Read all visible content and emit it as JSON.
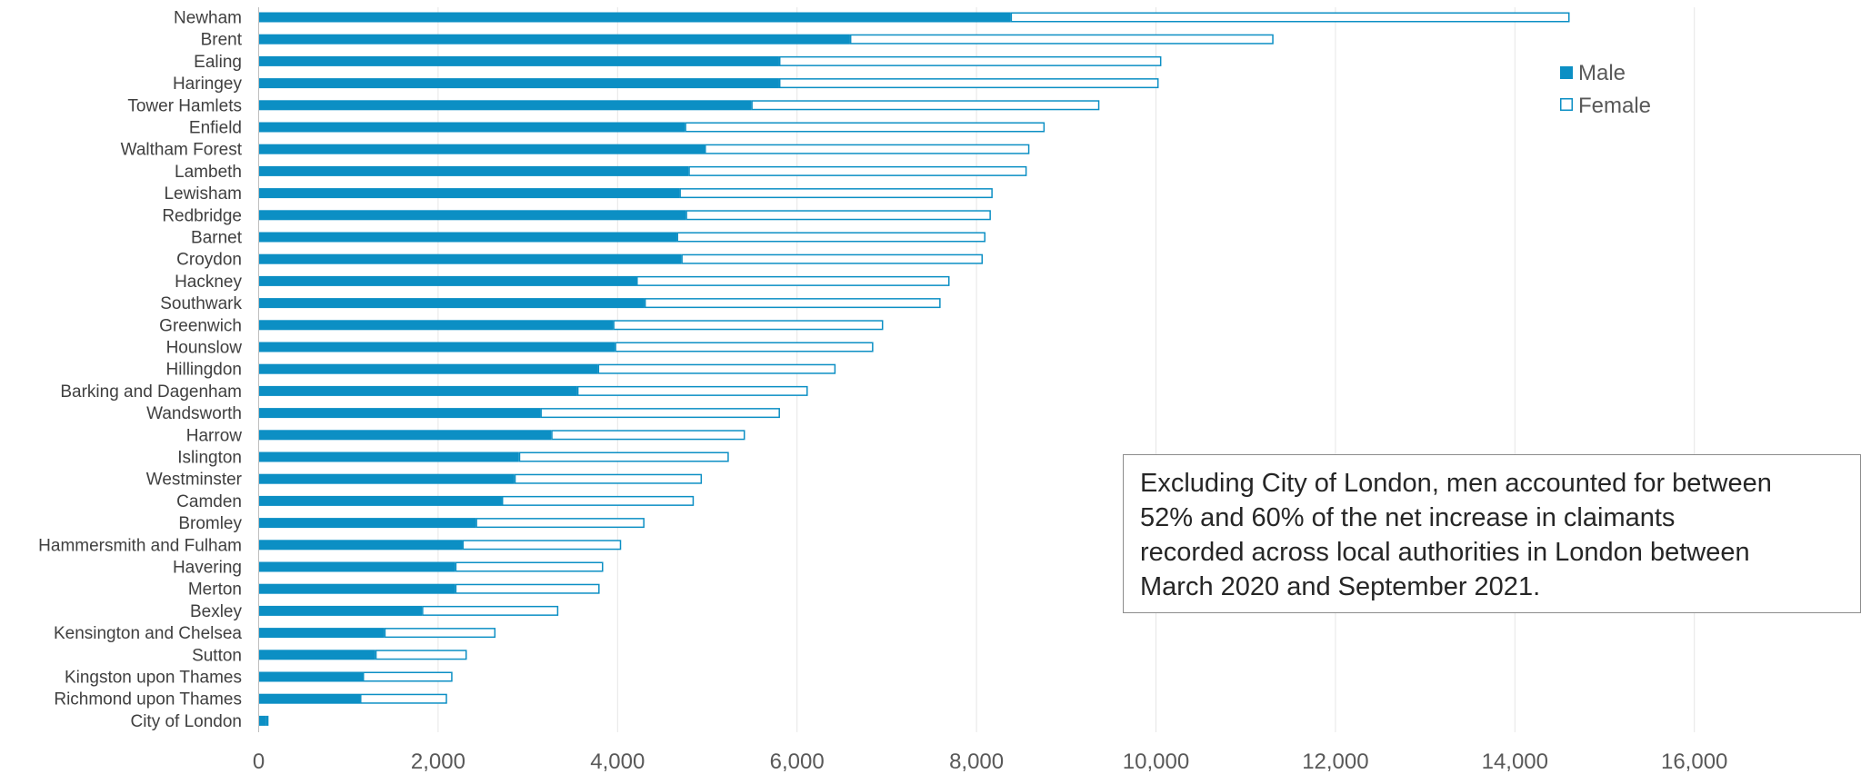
{
  "chart_data": {
    "type": "bar",
    "orientation": "horizontal",
    "stacked": true,
    "title": "",
    "xlabel": "",
    "ylabel": "",
    "xlim": [
      0,
      17500
    ],
    "x_ticks": [
      0,
      2000,
      4000,
      6000,
      8000,
      10000,
      12000,
      14000,
      16000
    ],
    "x_tick_labels": [
      "0",
      "2,000",
      "4,000",
      "6,000",
      "8,000",
      "10,000",
      "12,000",
      "14,000",
      "16,000"
    ],
    "grid": "vertical-major",
    "legend": {
      "placement": "top-right",
      "entries": [
        "Male",
        "Female"
      ]
    },
    "colors": {
      "male": "#0c8fc4",
      "female_fill": "#ffffff",
      "female_border": "#0c8fc4",
      "grid": "#e6e6e6",
      "axis": "#bfbfbf"
    },
    "categories": [
      "Newham",
      "Brent",
      "Ealing",
      "Haringey",
      "Tower Hamlets",
      "Enfield",
      "Waltham Forest",
      "Lambeth",
      "Lewisham",
      "Redbridge",
      "Barnet",
      "Croydon",
      "Hackney",
      "Southwark",
      "Greenwich",
      "Hounslow",
      "Hillingdon",
      "Barking and Dagenham",
      "Wandsworth",
      "Harrow",
      "Islington",
      "Westminster",
      "Camden",
      "Bromley",
      "Hammersmith and Fulham",
      "Havering",
      "Merton",
      "Bexley",
      "Kensington and Chelsea",
      "Sutton",
      "Kingston upon Thames",
      "Richmond upon Thames",
      "City of London"
    ],
    "series": [
      {
        "name": "Male",
        "values": [
          8380,
          6590,
          5800,
          5800,
          5490,
          4750,
          4970,
          4790,
          4690,
          4760,
          4660,
          4710,
          4210,
          4300,
          3950,
          3970,
          3780,
          3550,
          3140,
          3260,
          2900,
          2850,
          2710,
          2420,
          2270,
          2190,
          2190,
          1820,
          1400,
          1300,
          1160,
          1130,
          80
        ]
      },
      {
        "name": "Female",
        "values": [
          6230,
          4720,
          4260,
          4230,
          3880,
          4010,
          3620,
          3770,
          3490,
          3400,
          3440,
          3360,
          3490,
          3300,
          3010,
          2880,
          2650,
          2570,
          2670,
          2160,
          2340,
          2090,
          2140,
          1880,
          1770,
          1650,
          1610,
          1520,
          1240,
          1020,
          1000,
          970,
          30
        ]
      }
    ]
  },
  "annotation": {
    "lines": [
      "Excluding City of London, men accounted for between",
      "52% and 60% of the net increase in claimants",
      "recorded across local authorities in London between",
      "March 2020 and September 2021."
    ]
  }
}
